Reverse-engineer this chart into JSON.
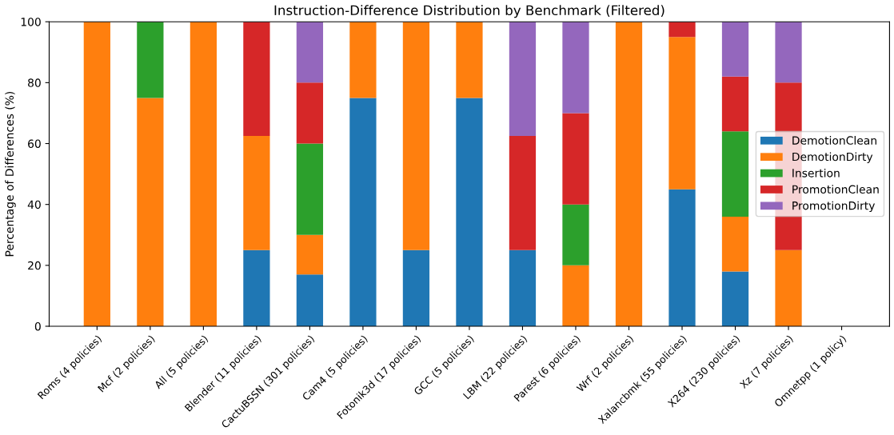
{
  "chart_data": {
    "type": "bar",
    "title": "Instruction-Difference Distribution by Benchmark (Filtered)",
    "ylabel": "Percentage of Differences (%)",
    "categories": [
      "Roms (4 policies)",
      "Mcf (2 policies)",
      "All (5 policies)",
      "Blender (11 policies)",
      "CactuBSSN (301 policies)",
      "Cam4 (5 policies)",
      "Fotonik3d (17 policies)",
      "GCC (5 policies)",
      "LBM (22 policies)",
      "Parest (6 policies)",
      "Wrf (2 policies)",
      "Xalancbmk (55 policies)",
      "X264 (230 policies)",
      "Xz (7 policies)",
      "Omnetpp (1 policy)"
    ],
    "stacked": true,
    "ylim": [
      0,
      100
    ],
    "yticks": [
      0,
      20,
      40,
      60,
      80,
      100
    ],
    "grid": false,
    "legend": "right",
    "series": [
      {
        "name": "DemotionClean",
        "color": "#1f77b4",
        "values": [
          0,
          0,
          0,
          25,
          17,
          75,
          25,
          75,
          25,
          0,
          0,
          45,
          18,
          0,
          0
        ]
      },
      {
        "name": "DemotionDirty",
        "color": "#ff7f0e",
        "values": [
          100,
          75,
          100,
          37.5,
          13,
          25,
          75,
          25,
          0,
          20,
          100,
          50,
          18,
          25,
          0
        ]
      },
      {
        "name": "Insertion",
        "color": "#2ca02c",
        "values": [
          0,
          25,
          0,
          0,
          30,
          0,
          0,
          0,
          0,
          20,
          0,
          0,
          28,
          0,
          0
        ]
      },
      {
        "name": "PromotionClean",
        "color": "#d62728",
        "values": [
          0,
          0,
          0,
          37.5,
          20,
          0,
          0,
          0,
          37.5,
          30,
          0,
          5,
          18,
          55,
          0
        ]
      },
      {
        "name": "PromotionDirty",
        "color": "#9467bd",
        "values": [
          0,
          0,
          0,
          0,
          20,
          0,
          0,
          0,
          37.5,
          30,
          0,
          0,
          18,
          20,
          0
        ]
      }
    ]
  }
}
